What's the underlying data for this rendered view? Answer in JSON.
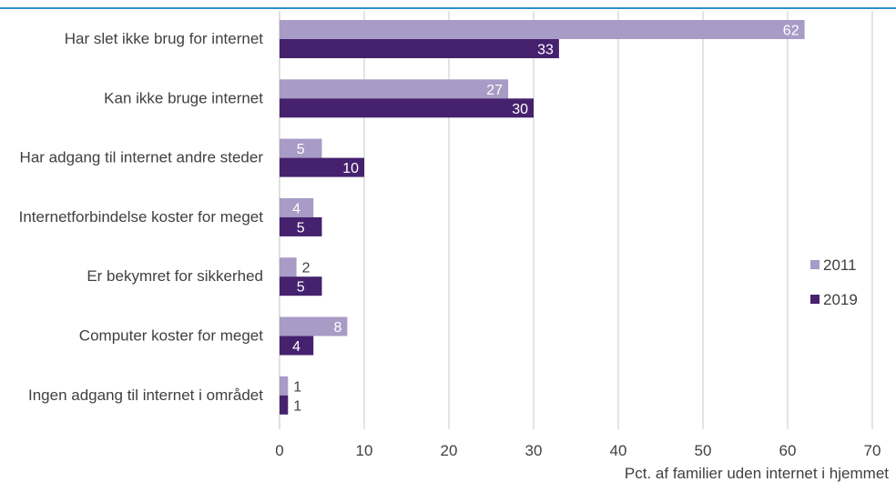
{
  "chart_data": {
    "type": "bar",
    "orientation": "horizontal",
    "title": "",
    "xlabel": "Pct. af familier uden internet i hjemmet",
    "ylabel": "",
    "xlim": [
      0,
      70
    ],
    "x_ticks": [
      0,
      10,
      20,
      30,
      40,
      50,
      60,
      70
    ],
    "grid": true,
    "legend_position": "right",
    "categories": [
      "Har slet ikke brug for internet",
      "Kan ikke bruge internet",
      "Har adgang til internet andre steder",
      "Internetforbindelse koster for meget",
      "Er bekymret for sikkerhed",
      "Computer koster for meget",
      "Ingen adgang til internet i området"
    ],
    "series": [
      {
        "name": "2011",
        "color": "#a89bc6",
        "values": [
          62,
          27,
          5,
          4,
          2,
          8,
          1
        ]
      },
      {
        "name": "2019",
        "color": "#45216e",
        "values": [
          33,
          30,
          10,
          5,
          5,
          4,
          1
        ]
      }
    ]
  },
  "colors": {
    "top_rule": "#2c8fc9",
    "gridline": "#c8c8c8",
    "axis": "#bfbfbf"
  }
}
